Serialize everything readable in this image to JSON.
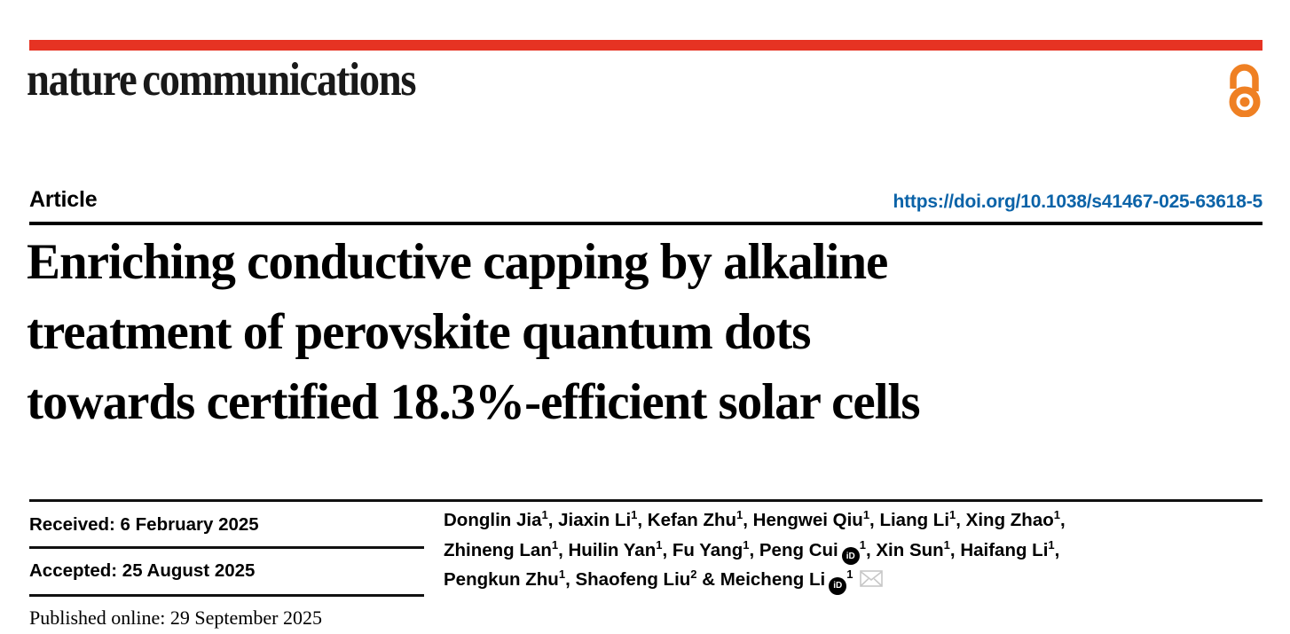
{
  "journal": {
    "name": "nature communications"
  },
  "header": {
    "article_label": "Article",
    "doi_link": "https://doi.org/10.1038/s41467-025-63618-5"
  },
  "title": {
    "lines": [
      "Enriching conductive capping by alkaline",
      "treatment of perovskite quantum dots",
      "towards certified 18.3%-efficient solar cells"
    ]
  },
  "dates": {
    "received": "Received: 6 February 2025",
    "accepted": "Accepted: 25 August 2025",
    "published_online": "Published online: 29 September 2025"
  },
  "authors": {
    "lines": [
      [
        {
          "t": "Donglin Jia",
          "sup": "1",
          "after": ", "
        },
        {
          "t": "Jiaxin Li",
          "sup": "1",
          "after": ", "
        },
        {
          "t": "Kefan Zhu",
          "sup": "1",
          "after": ", "
        },
        {
          "t": "Hengwei Qiu",
          "sup": "1",
          "after": ", "
        },
        {
          "t": "Liang Li",
          "sup": "1",
          "after": ", "
        },
        {
          "t": "Xing Zhao",
          "sup": "1",
          "after": ","
        }
      ],
      [
        {
          "t": "Zhineng Lan",
          "sup": "1",
          "after": ", "
        },
        {
          "t": "Huilin Yan",
          "sup": "1",
          "after": ", "
        },
        {
          "t": "Fu Yang",
          "sup": "1",
          "after": ", "
        },
        {
          "t": "Peng Cui",
          "orcid": true,
          "sup": "1",
          "after": ", "
        },
        {
          "t": "Xin Sun",
          "sup": "1",
          "after": ", "
        },
        {
          "t": "Haifang Li",
          "sup": "1",
          "after": ","
        }
      ],
      [
        {
          "t": "Pengkun Zhu",
          "sup": "1",
          "after": ", "
        },
        {
          "t": "Shaofeng Liu",
          "sup": "2",
          "after": " & "
        },
        {
          "t": "Meicheng Li",
          "orcid": true,
          "sup": "1",
          "mail": true,
          "after": ""
        }
      ]
    ]
  },
  "icons": {
    "open_access": "open-access-padlock",
    "orcid_text": "iD",
    "email": "email-envelope"
  },
  "colors": {
    "brand_red": "#e63323",
    "link_blue": "#0b63a8",
    "open_access_orange": "#ef8023",
    "envelope_gray": "#c7c7c7",
    "text_black": "#000000"
  }
}
